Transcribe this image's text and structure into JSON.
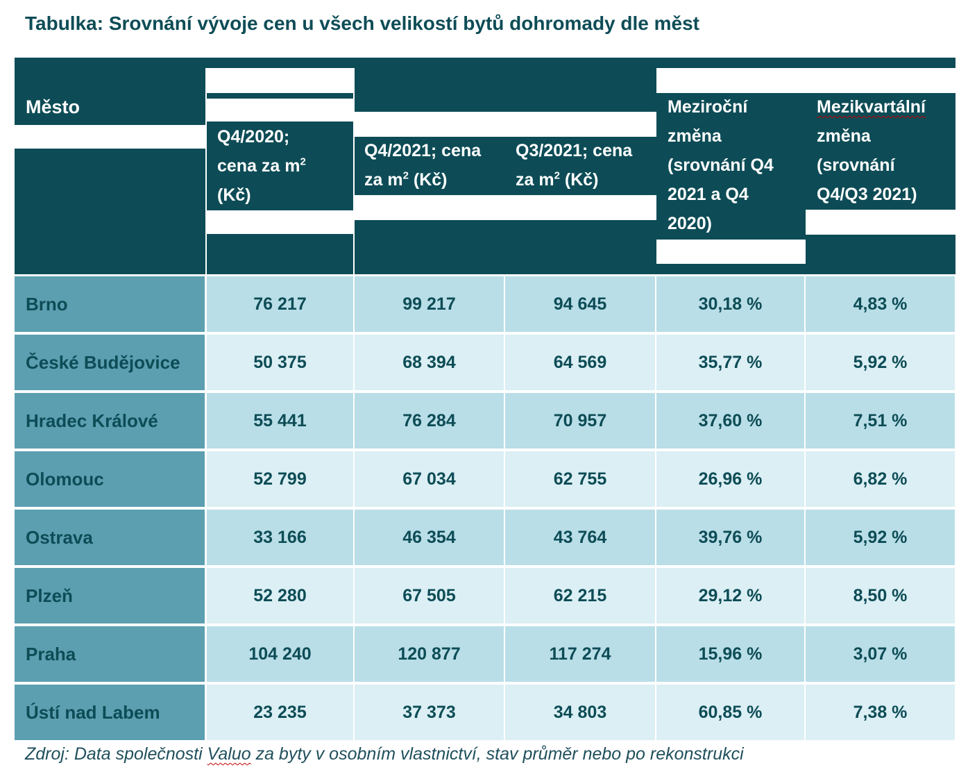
{
  "title": "Tabulka: Srovnání vývoje cen u všech velikostí bytů dohromady dle měst",
  "headers": {
    "city": "Město",
    "q4_2020_lines": [
      "Q4/2020;",
      "cena za m",
      "(Kč)"
    ],
    "q4_2021_lines": [
      "Q4/2021; cena",
      "za m",
      " (Kč)"
    ],
    "q3_2021_lines": [
      "Q3/2021; cena",
      "za m",
      " (Kč)"
    ],
    "superscript": "2",
    "yoy_lines": [
      "Meziroční",
      "změna",
      "(srovnání Q4",
      "2021 a Q4",
      "2020)"
    ],
    "qoq_lines": [
      "Mezikvartální",
      "změna",
      "(srovnání",
      "Q4/Q3 2021)"
    ]
  },
  "rows": [
    {
      "city": "Brno",
      "q4_2020": "76 217",
      "q4_2021": "99 217",
      "q3_2021": "94 645",
      "yoy": "30,18 %",
      "qoq": "4,83 %"
    },
    {
      "city": "České Budějovice",
      "q4_2020": "50 375",
      "q4_2021": "68 394",
      "q3_2021": "64 569",
      "yoy": "35,77 %",
      "qoq": "5,92 %"
    },
    {
      "city": "Hradec Králové",
      "q4_2020": "55 441",
      "q4_2021": "76 284",
      "q3_2021": "70 957",
      "yoy": "37,60 %",
      "qoq": "7,51 %"
    },
    {
      "city": "Olomouc",
      "q4_2020": "52 799",
      "q4_2021": "67 034",
      "q3_2021": "62 755",
      "yoy": "26,96 %",
      "qoq": "6,82 %"
    },
    {
      "city": "Ostrava",
      "q4_2020": "33 166",
      "q4_2021": "46 354",
      "q3_2021": "43 764",
      "yoy": "39,76 %",
      "qoq": "5,92 %"
    },
    {
      "city": "Plzeň",
      "q4_2020": "52 280",
      "q4_2021": "67 505",
      "q3_2021": "62 215",
      "yoy": "29,12 %",
      "qoq": "8,50 %"
    },
    {
      "city": "Praha",
      "q4_2020": "104 240",
      "q4_2021": "120 877",
      "q3_2021": "117 274",
      "yoy": "15,96 %",
      "qoq": "3,07 %"
    },
    {
      "city": "Ústí nad Labem",
      "q4_2020": "23 235",
      "q4_2021": "37 373",
      "q3_2021": "34 803",
      "yoy": "60,85 %",
      "qoq": "7,38 %"
    }
  ],
  "source": {
    "before": "Zdroj: Data společnosti ",
    "brand": "Valuo",
    "after": " za byty v osobním vlastnictví, stav průměr nebo po rekonstrukci"
  },
  "colors": {
    "header_bg": "#0d4c56",
    "city_col_bg": "#5b9fb0",
    "row_dark": "#b9dee7",
    "row_light": "#dbeff4",
    "text": "#0d4c56"
  }
}
